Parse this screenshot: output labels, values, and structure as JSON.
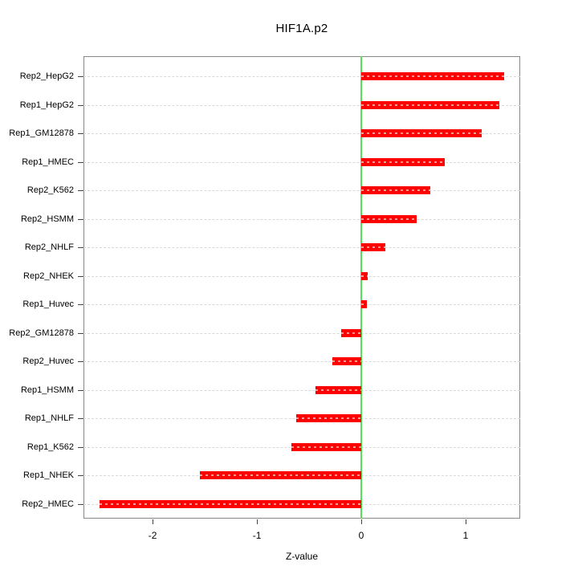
{
  "chart_data": {
    "type": "bar",
    "orientation": "horizontal",
    "title": "HIF1A.p2",
    "xlabel": "Z-value",
    "ylabel": "",
    "categories": [
      "Rep2_HepG2",
      "Rep1_HepG2",
      "Rep1_GM12878",
      "Rep1_HMEC",
      "Rep2_K562",
      "Rep2_HSMM",
      "Rep2_NHLF",
      "Rep2_NHEK",
      "Rep1_Huvec",
      "Rep2_GM12878",
      "Rep2_Huvec",
      "Rep1_HSMM",
      "Rep1_NHLF",
      "Rep1_K562",
      "Rep1_NHEK",
      "Rep2_HMEC"
    ],
    "values": [
      1.37,
      1.32,
      1.15,
      0.8,
      0.66,
      0.53,
      0.23,
      0.06,
      0.05,
      -0.19,
      -0.28,
      -0.44,
      -0.62,
      -0.67,
      -1.55,
      -2.51
    ],
    "x_ticks": [
      -2,
      -1,
      0,
      1
    ],
    "x_tick_labels": [
      "-2",
      "-1",
      "0",
      "1"
    ],
    "xlim": [
      -2.662,
      1.523
    ],
    "grid": true,
    "legend": "none",
    "colors": {
      "bar": "#ff0000",
      "zero_line": "#55e055",
      "grid_line": "#d9d9d9",
      "box": "#888888",
      "tick": "#444444",
      "text": "#000000"
    }
  }
}
